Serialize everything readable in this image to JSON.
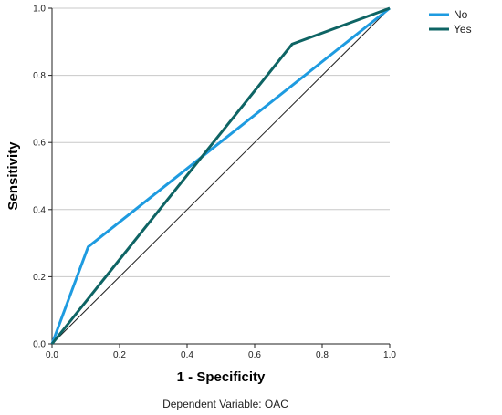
{
  "chart_data": {
    "type": "line",
    "title": "",
    "xlabel": "1 - Specificity",
    "ylabel": "Sensitivity",
    "xlim": [
      0,
      1
    ],
    "ylim": [
      0,
      1
    ],
    "x_ticks": [
      "0.0",
      "0.2",
      "0.4",
      "0.6",
      "0.8",
      "1.0"
    ],
    "y_ticks": [
      "0.0",
      "0.2",
      "0.4",
      "0.6",
      "0.8",
      "1.0"
    ],
    "grid": "horizontal",
    "legend_position": "top-right",
    "reference_line": {
      "x": [
        0,
        1
      ],
      "y": [
        0,
        1
      ],
      "color": "#222222"
    },
    "series": [
      {
        "name": "No",
        "color": "#1e9be0",
        "x": [
          0,
          0.107,
          1
        ],
        "y": [
          0,
          0.289,
          1
        ]
      },
      {
        "name": "Yes",
        "color": "#0e6464",
        "x": [
          0,
          0.711,
          1
        ],
        "y": [
          0,
          0.893,
          1
        ]
      }
    ],
    "footnote": "Dependent Variable: OAC"
  }
}
